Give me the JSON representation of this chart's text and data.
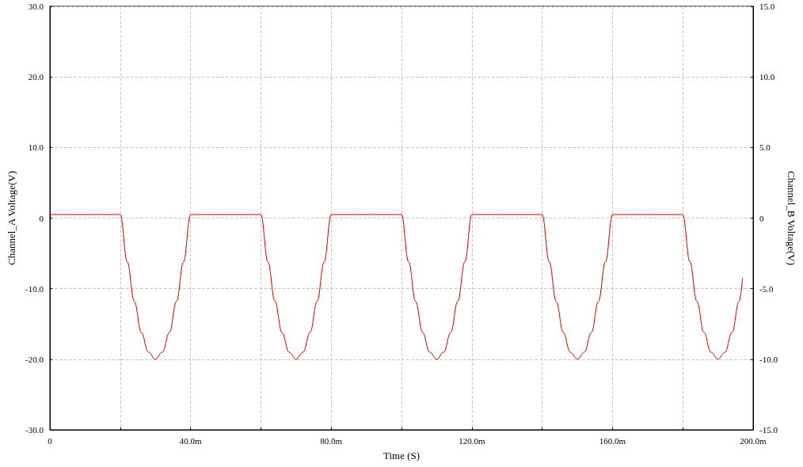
{
  "chart_data": {
    "type": "line",
    "xlabel": "Time (S)",
    "ylabel": "Channel_A Voltage(V)",
    "y2label": "Channel_B Voltage(V)",
    "series": [
      {
        "color": "#cc0000",
        "x": [
          0,
          20,
          22,
          24,
          26,
          28,
          30,
          32,
          34,
          36,
          38,
          40,
          60,
          62,
          64,
          66,
          68,
          70,
          72,
          74,
          76,
          78,
          80,
          100,
          102,
          104,
          106,
          108,
          110,
          112,
          114,
          116,
          118,
          120,
          140,
          142,
          144,
          146,
          148,
          150,
          152,
          154,
          156,
          158,
          160,
          180,
          182,
          184,
          186,
          188,
          190,
          192,
          194,
          196,
          197
        ],
        "values": [
          0.5,
          0.5,
          -6.2,
          -11.8,
          -16.2,
          -19.0,
          -20,
          -19.0,
          -16.2,
          -11.8,
          -6.2,
          0.5,
          0.5,
          -6.2,
          -11.8,
          -16.2,
          -19.0,
          -20,
          -19.0,
          -16.2,
          -11.8,
          -6.2,
          0.5,
          0.5,
          -6.2,
          -11.8,
          -16.2,
          -19.0,
          -20,
          -19.0,
          -16.2,
          -11.8,
          -6.2,
          0.5,
          0.5,
          -6.2,
          -11.8,
          -16.2,
          -19.0,
          -20,
          -19.0,
          -16.2,
          -11.8,
          -6.2,
          0.5,
          0.5,
          -6.2,
          -11.8,
          -16.2,
          -19.0,
          -20,
          -19.0,
          -16.2,
          -11.8,
          -8.5
        ]
      }
    ],
    "xlim": [
      0,
      200
    ],
    "xticks": [
      0,
      {
        "value": 20,
        "label": null
      },
      {
        "value": 40,
        "label": "40.0m"
      },
      {
        "value": 60,
        "label": null
      },
      {
        "value": 80,
        "label": "80.0m"
      },
      {
        "value": 100,
        "label": null
      },
      {
        "value": 120,
        "label": "120.0m"
      },
      {
        "value": 140,
        "label": null
      },
      {
        "value": 160,
        "label": "160.0m"
      },
      {
        "value": 180,
        "label": null
      },
      {
        "value": 200,
        "label": "200.0m"
      }
    ],
    "ylim": [
      -30,
      30
    ],
    "yticks": [
      {
        "value": -30,
        "label": "-30.0"
      },
      {
        "value": -20,
        "label": "-20.0"
      },
      {
        "value": -10,
        "label": "-10.0"
      },
      0,
      {
        "value": 10,
        "label": "10.0"
      },
      {
        "value": 20,
        "label": "20.0"
      },
      {
        "value": 30,
        "label": "30.0"
      }
    ],
    "y2lim": [
      -15,
      15
    ],
    "y2ticks": [
      {
        "value": -15,
        "label": "-15.0"
      },
      {
        "value": -10,
        "label": "-10.0"
      },
      {
        "value": -5,
        "label": "-5.0"
      },
      0,
      {
        "value": 5,
        "label": "5.0"
      },
      {
        "value": 10,
        "label": "10.0"
      },
      {
        "value": 15,
        "label": "15.0"
      }
    ],
    "grid": true,
    "marker": "none",
    "line_style": "solid"
  }
}
